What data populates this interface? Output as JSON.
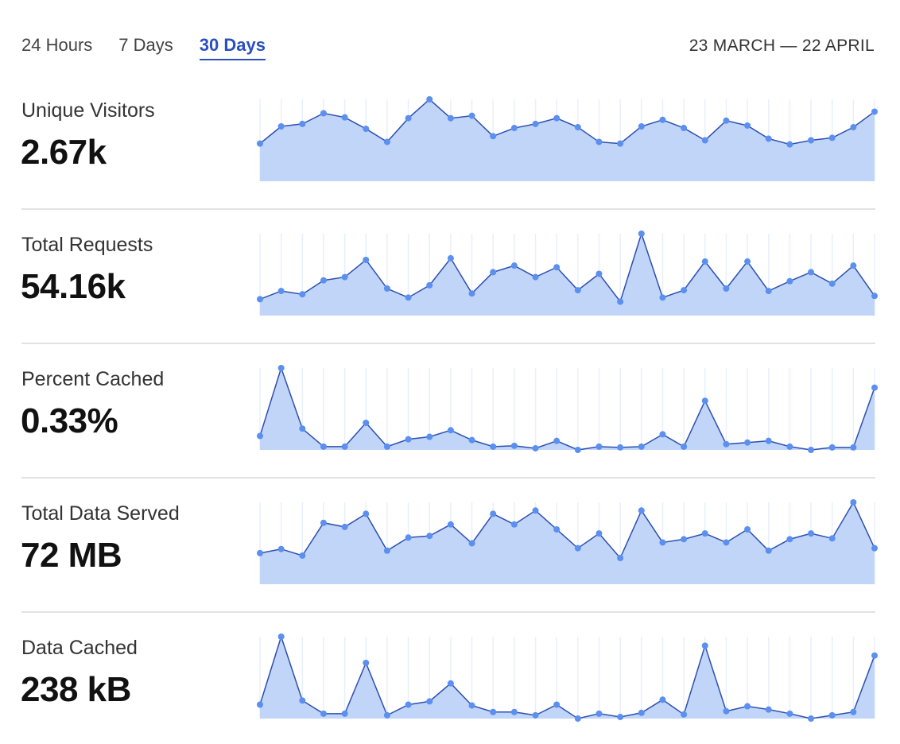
{
  "tabs": [
    {
      "label": "24 Hours",
      "active": false
    },
    {
      "label": "7 Days",
      "active": false
    },
    {
      "label": "30 Days",
      "active": true
    }
  ],
  "date_range": "23 MARCH — 22 APRIL",
  "colors": {
    "accent": "#2a4fbf",
    "line": "#2d4fb0",
    "fill": "#c0d5f8",
    "point": "#5b8ff0",
    "grid": "#e8effc"
  },
  "metrics": [
    {
      "label": "Unique Visitors",
      "value": "2.67k"
    },
    {
      "label": "Total Requests",
      "value": "54.16k"
    },
    {
      "label": "Percent Cached",
      "value": "0.33%"
    },
    {
      "label": "Total Data Served",
      "value": "72 MB"
    },
    {
      "label": "Data Cached",
      "value": "238 kB"
    }
  ],
  "chart_data": [
    {
      "type": "area",
      "points": 30,
      "values_relative": [
        46,
        67,
        70,
        83,
        78,
        64,
        48,
        77,
        100,
        77,
        80,
        55,
        65,
        70,
        77,
        66,
        48,
        46,
        67,
        75,
        65,
        50,
        74,
        68,
        52,
        45,
        50,
        53,
        66,
        85
      ]
    },
    {
      "type": "area",
      "points": 30,
      "values_relative": [
        20,
        30,
        26,
        43,
        47,
        68,
        33,
        22,
        37,
        70,
        27,
        53,
        61,
        47,
        59,
        31,
        51,
        17,
        100,
        22,
        31,
        66,
        33,
        66,
        30,
        42,
        53,
        39,
        61,
        24
      ]
    },
    {
      "type": "area",
      "points": 30,
      "values_relative": [
        17,
        100,
        26,
        4,
        4,
        33,
        4,
        13,
        16,
        24,
        12,
        4,
        5,
        2,
        11,
        0,
        4,
        3,
        4,
        19,
        4,
        60,
        7,
        9,
        11,
        4,
        0,
        3,
        3,
        76
      ]
    },
    {
      "type": "area",
      "points": 30,
      "values_relative": [
        38,
        43,
        35,
        75,
        70,
        86,
        41,
        57,
        59,
        73,
        50,
        86,
        73,
        90,
        67,
        44,
        62,
        32,
        90,
        51,
        55,
        62,
        51,
        67,
        41,
        55,
        62,
        56,
        100,
        44
      ]
    },
    {
      "type": "area",
      "points": 30,
      "values_relative": [
        17,
        100,
        22,
        6,
        6,
        68,
        4,
        17,
        21,
        43,
        16,
        8,
        8,
        4,
        17,
        0,
        6,
        2,
        7,
        23,
        5,
        89,
        9,
        15,
        11,
        6,
        0,
        4,
        8,
        77
      ]
    }
  ]
}
